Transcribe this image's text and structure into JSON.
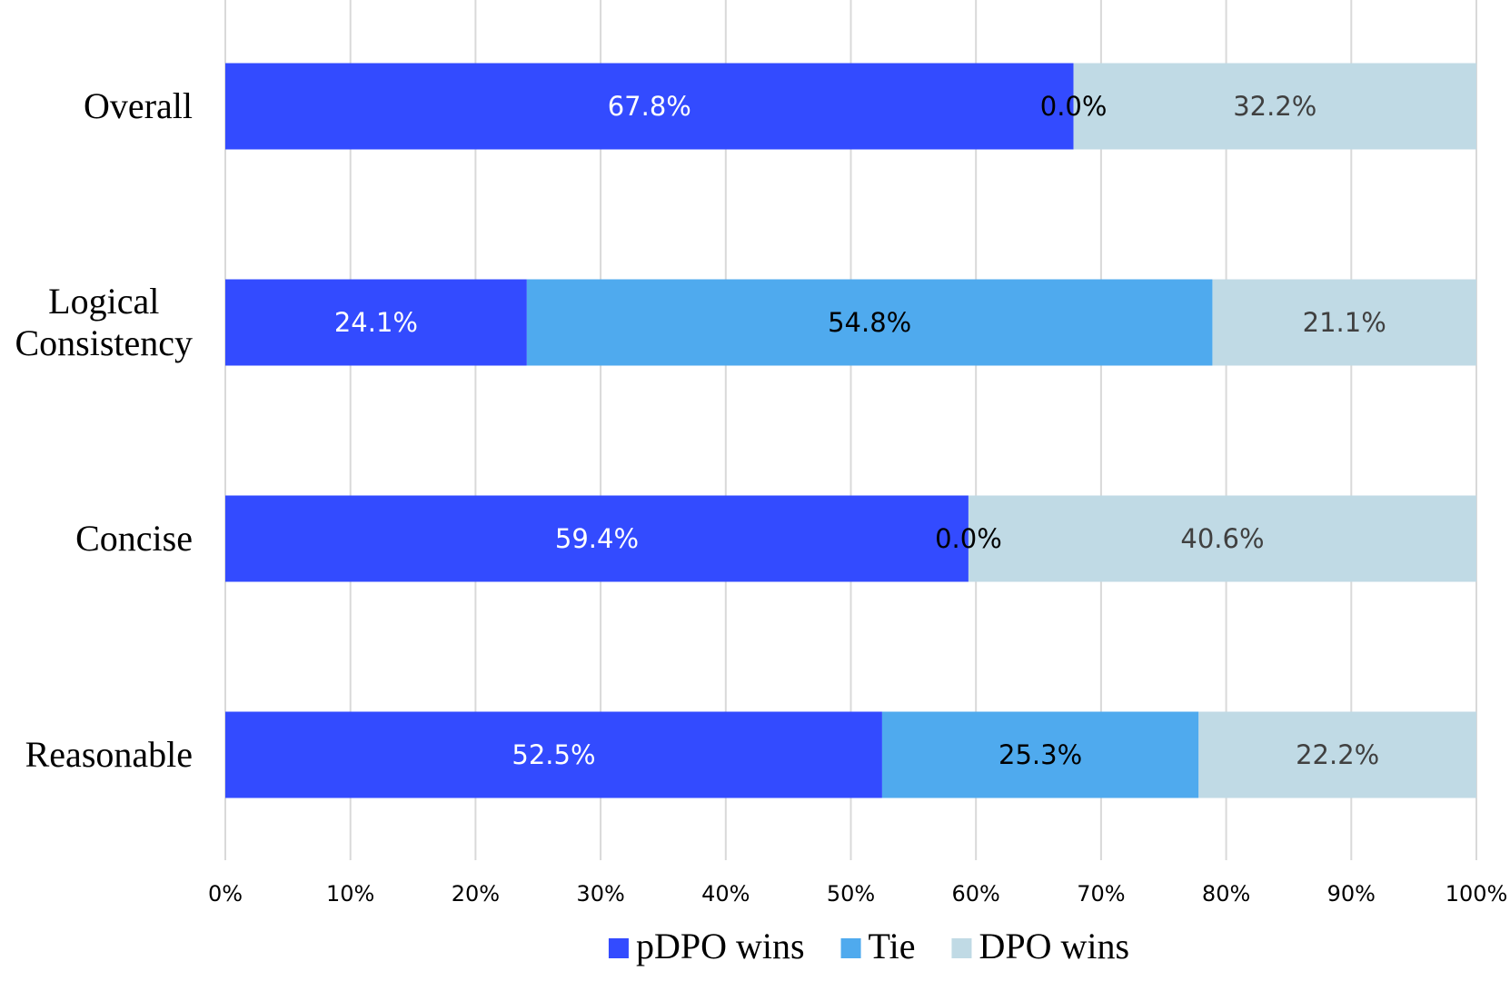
{
  "chart_data": {
    "type": "bar",
    "orientation": "horizontal",
    "stacked": true,
    "percent_stacked": true,
    "title": "",
    "xlabel": "",
    "ylabel": "",
    "xlim": [
      0,
      100
    ],
    "x_ticks": [
      0,
      10,
      20,
      30,
      40,
      50,
      60,
      70,
      80,
      90,
      100
    ],
    "x_tick_labels": [
      "0%",
      "10%",
      "20%",
      "30%",
      "40%",
      "50%",
      "60%",
      "70%",
      "80%",
      "90%",
      "100%"
    ],
    "grid": "vertical",
    "legend_position": "bottom",
    "categories": [
      "Overall",
      "Logical Consistency",
      "Concise",
      "Reasonable"
    ],
    "category_lines": [
      [
        "Overall"
      ],
      [
        "Logical",
        "Consistency"
      ],
      [
        "Concise"
      ],
      [
        "Reasonable"
      ]
    ],
    "series": [
      {
        "name": "pDPO wins",
        "color": "#334bff",
        "label_color": "#ffffff",
        "values": [
          67.8,
          24.1,
          59.4,
          52.5
        ],
        "labels": [
          "67.8%",
          "24.1%",
          "59.4%",
          "52.5%"
        ]
      },
      {
        "name": "Tie",
        "color": "#4faaee",
        "label_color": "#000000",
        "values": [
          0.0,
          54.8,
          0.0,
          25.3
        ],
        "labels": [
          "0.0%",
          "54.8%",
          "0.0%",
          "25.3%"
        ]
      },
      {
        "name": "DPO wins",
        "color": "#c0dae5",
        "label_color": "#404040",
        "values": [
          32.2,
          21.1,
          40.6,
          22.2
        ],
        "labels": [
          "32.2%",
          "21.1%",
          "40.6%",
          "22.2%"
        ]
      }
    ],
    "gridline_color": "#d9d9d9"
  }
}
